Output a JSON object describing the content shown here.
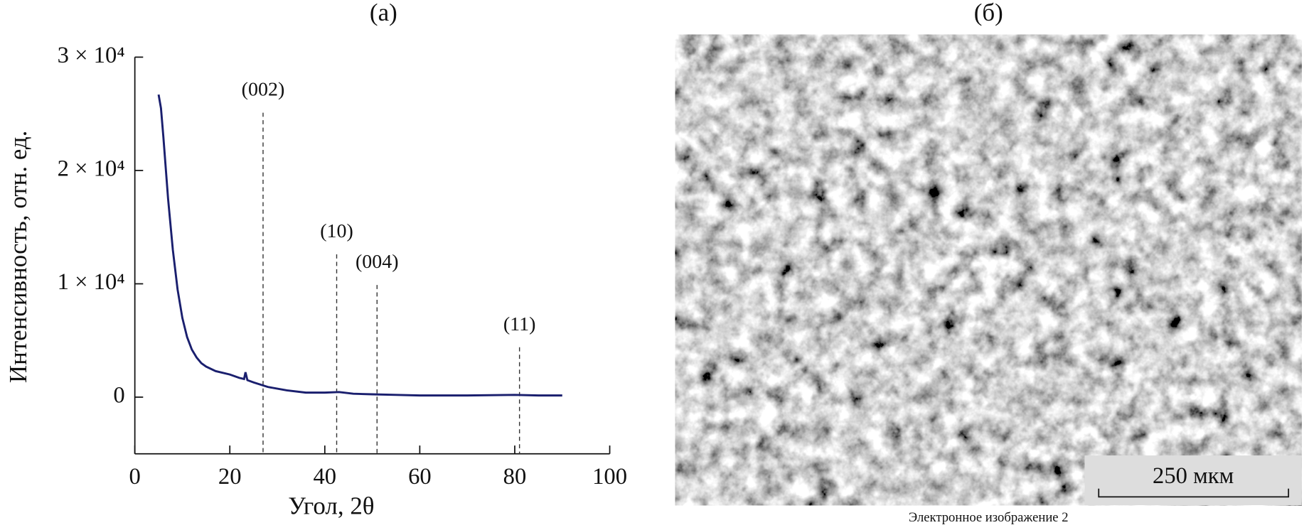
{
  "chart_data": {
    "type": "line",
    "title": "(а)",
    "x_label": "Угол, 2θ",
    "y_label": "Интенсивность, отн. ед.",
    "xlim": [
      0,
      100
    ],
    "xticks": [
      0,
      20,
      40,
      60,
      80,
      100
    ],
    "ylim": [
      -5000,
      30000
    ],
    "yticks": [
      {
        "value": 0,
        "label": "0"
      },
      {
        "value": 10000,
        "label": "1 × 10⁴"
      },
      {
        "value": 20000,
        "label": "2 × 10⁴"
      },
      {
        "value": 30000,
        "label": "3 × 10⁴"
      }
    ],
    "series": [
      {
        "color": "#1a1f6e",
        "x": [
          5,
          5.5,
          6,
          7,
          8,
          9,
          10,
          11,
          12,
          13,
          14,
          15,
          17,
          20,
          22,
          23,
          23.3,
          23.7,
          25,
          28,
          32,
          36,
          40,
          43,
          46,
          50,
          55,
          60,
          70,
          80,
          85,
          90
        ],
        "values": [
          26700,
          25500,
          23000,
          17500,
          13000,
          9500,
          7000,
          5300,
          4200,
          3500,
          3000,
          2700,
          2300,
          2000,
          1700,
          1600,
          2200,
          1500,
          1300,
          900,
          600,
          400,
          400,
          450,
          300,
          250,
          200,
          150,
          150,
          200,
          150,
          150
        ]
      }
    ],
    "annotations": [
      {
        "label": "(002)",
        "x": 27,
        "y": 25100
      },
      {
        "label": "(10)",
        "x": 42.5,
        "y": 12600
      },
      {
        "label": "(004)",
        "x": 51,
        "y": 9900
      },
      {
        "label": "(11)",
        "x": 81,
        "y": 4400
      }
    ]
  },
  "image_panel": {
    "title": "(б)",
    "scale_bar": "250 мкм",
    "caption": "Электронное изображение 2"
  }
}
